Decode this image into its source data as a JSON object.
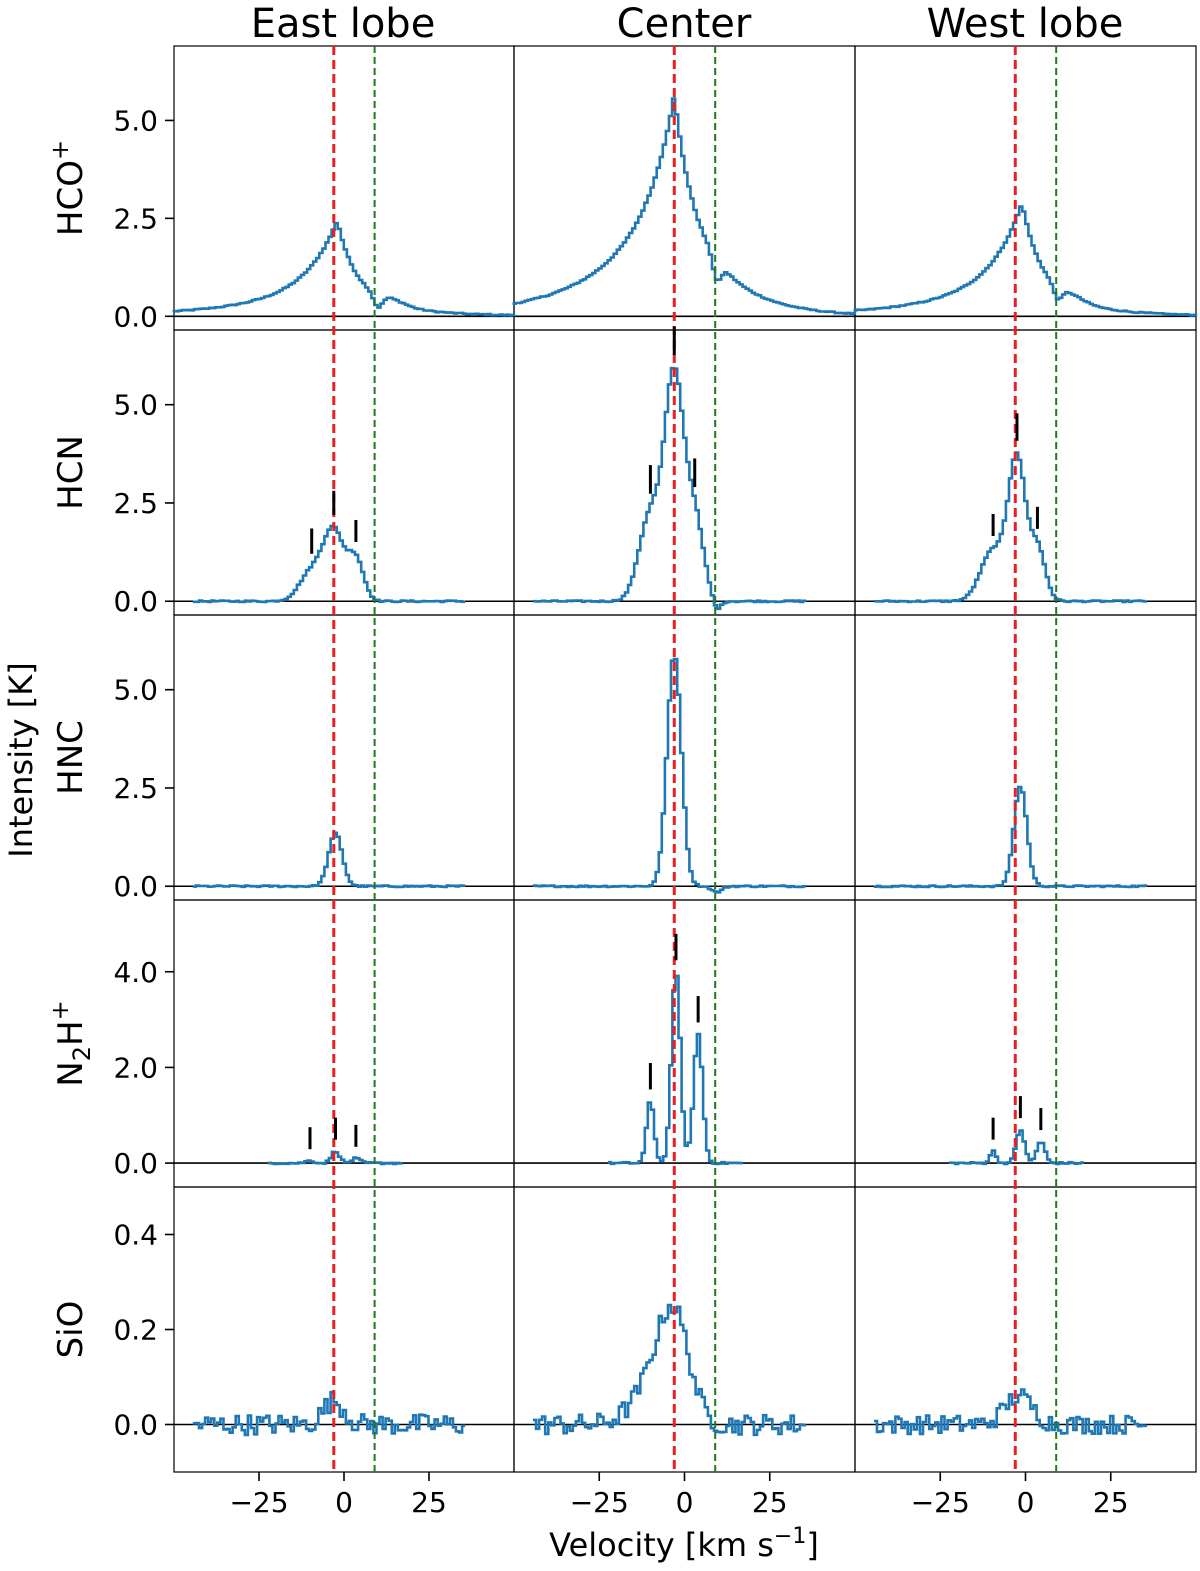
{
  "chart_data": {
    "type": "line",
    "layout": "grid 5 rows x 3 columns, shared axes",
    "columns": [
      "East lobe",
      "Center",
      "West lobe"
    ],
    "rows": [
      {
        "key": "hcop",
        "label": "HCO",
        "label_sup": "+",
        "ylim": [
          -0.35,
          6.9
        ],
        "yticks": [
          0.0,
          2.5,
          5.0
        ]
      },
      {
        "key": "hcn",
        "label": "HCN",
        "label_sup": "",
        "ylim": [
          -0.35,
          6.9
        ],
        "yticks": [
          0.0,
          2.5,
          5.0
        ]
      },
      {
        "key": "hnc",
        "label": "HNC",
        "label_sup": "",
        "ylim": [
          -0.35,
          6.9
        ],
        "yticks": [
          0.0,
          2.5,
          5.0
        ]
      },
      {
        "key": "n2hp",
        "label": "N",
        "label_sub": "2",
        "label_mid": "H",
        "label_sup": "+",
        "ylim": [
          -0.5,
          5.5
        ],
        "yticks": [
          0.0,
          2.0,
          4.0
        ]
      },
      {
        "key": "sio",
        "label": "SiO",
        "label_sup": "",
        "ylim": [
          -0.1,
          0.5
        ],
        "yticks": [
          0.0,
          0.2,
          0.4
        ]
      }
    ],
    "ytick_labels": {
      "hcop": [
        "0.0",
        "2.5",
        "5.0"
      ],
      "hcn": [
        "0.0",
        "2.5",
        "5.0"
      ],
      "hnc": [
        "0.0",
        "2.5",
        "5.0"
      ],
      "n2hp": [
        "0.0",
        "2.0",
        "4.0"
      ],
      "sio": [
        "0.0",
        "0.2",
        "0.4"
      ]
    },
    "xlim": [
      -50,
      50
    ],
    "xticks": [
      -25,
      0,
      25
    ],
    "xtick_labels": [
      "−25",
      "0",
      "25"
    ],
    "xlabel_main": "Velocity [km s",
    "xlabel_sup": "−1",
    "xlabel_end": "]",
    "ylabel": "Intensity [K]",
    "reference_lines": [
      {
        "color": "#e8201f",
        "x": -3
      },
      {
        "color": "#1f7a1f",
        "x": 9
      }
    ],
    "series_color": "#1f77b4",
    "series": {
      "hcop": [
        {
          "v0": -2,
          "peak": 2.45,
          "wl": 12,
          "wr": 7,
          "base": 0.3,
          "span": [
            -50,
            50
          ],
          "abs": {
            "v": 10,
            "depth": 0.35,
            "w": 1.3
          },
          "bump": {
            "v": 14,
            "amp": 0.12,
            "w": 4
          }
        },
        {
          "v0": -3,
          "peak": 5.65,
          "wl": 9,
          "wr": 6,
          "base": 0.6,
          "span": [
            -50,
            50
          ],
          "abs": {
            "v": 9.5,
            "depth": 0.55,
            "w": 1.2
          }
        },
        {
          "v0": -1,
          "peak": 2.9,
          "wl": 12,
          "wr": 7,
          "base": 0.3,
          "span": [
            -50,
            50
          ],
          "abs": {
            "v": 9.5,
            "depth": 0.35,
            "w": 1.3
          },
          "bump": {
            "v": 13,
            "amp": 0.12,
            "w": 4
          }
        }
      ],
      "hcn": [
        {
          "span": [
            -44,
            36
          ],
          "comps": [
            [
              -9.5,
              0.75,
              3.5
            ],
            [
              -3,
              1.75,
              3.0
            ],
            [
              3.5,
              1.05,
              2.3
            ]
          ]
        },
        {
          "span": [
            -44,
            36
          ],
          "comps": [
            [
              -10,
              2.2,
              3.3
            ],
            [
              -3,
              5.6,
              2.8
            ],
            [
              3,
              2.05,
              2.6
            ]
          ],
          "abs": {
            "v": 9.5,
            "depth": 0.25,
            "w": 1.2
          }
        },
        {
          "span": [
            -44,
            36
          ],
          "comps": [
            [
              -9.5,
              1.3,
              3.6
            ],
            [
              -2.5,
              3.55,
              2.5
            ],
            [
              3.5,
              1.35,
              2.3
            ]
          ]
        }
      ],
      "hnc": [
        {
          "span": [
            -44,
            36
          ],
          "comps": [
            [
              -2.5,
              1.35,
              2.0
            ]
          ]
        },
        {
          "span": [
            -44,
            36
          ],
          "comps": [
            [
              -3,
              5.9,
              2.1
            ]
          ],
          "abs": {
            "v": 9.5,
            "depth": 0.15,
            "w": 1.5
          }
        },
        {
          "span": [
            -44,
            36
          ],
          "comps": [
            [
              -1.5,
              2.55,
              1.9
            ]
          ]
        }
      ],
      "n2hp": [
        {
          "span": [
            -22,
            17
          ],
          "comps": [
            [
              -10,
              0.05,
              1.2
            ],
            [
              -2.5,
              0.25,
              1.2
            ],
            [
              3.5,
              0.1,
              1.2
            ]
          ]
        },
        {
          "span": [
            -22,
            17
          ],
          "comps": [
            [
              -10,
              1.3,
              1.1
            ],
            [
              -2.5,
              4.0,
              1.3
            ],
            [
              4,
              2.7,
              1.3
            ]
          ]
        },
        {
          "span": [
            -22,
            17
          ],
          "comps": [
            [
              -9.5,
              0.25,
              0.9
            ],
            [
              -1.5,
              0.7,
              1.2
            ],
            [
              4.5,
              0.45,
              1.2
            ]
          ]
        }
      ],
      "sio": [
        {
          "span": [
            -44,
            36
          ],
          "comps": [
            [
              -3,
              0.05,
              3.0
            ]
          ],
          "noise": 0.022
        },
        {
          "span": [
            -44,
            36
          ],
          "comps": [
            [
              -3,
              0.2,
              4.5
            ],
            [
              -9,
              0.08,
              6.0
            ]
          ],
          "noise": 0.022
        },
        {
          "span": [
            -44,
            36
          ],
          "comps": [
            [
              -2,
              0.06,
              4.0
            ]
          ],
          "noise": 0.02
        }
      ]
    },
    "hyperfine_markers": {
      "hcn": [
        [
          -9.5,
          -3,
          3.5
        ],
        [
          -10,
          -3,
          3
        ],
        [
          -9.5,
          -2.5,
          3.5
        ]
      ],
      "n2hp": [
        [
          -10,
          -2.5,
          3.5
        ],
        [
          -10,
          -2.5,
          4
        ],
        [
          -9.5,
          -1.5,
          4.5
        ]
      ]
    },
    "hyperfine_marker_height": {
      "hcn": [
        [
          1.15,
          1.1,
          1.0
        ],
        [
          1.3,
          1.3,
          1.3
        ],
        [
          1.0,
          1.25,
          1.0
        ]
      ],
      "n2hp": [
        [
          1.0,
          1.0,
          1.0
        ],
        [
          1.2,
          1.2,
          1.2
        ],
        [
          1.0,
          1.0,
          1.0
        ]
      ]
    },
    "grid": false,
    "legend": "none"
  }
}
